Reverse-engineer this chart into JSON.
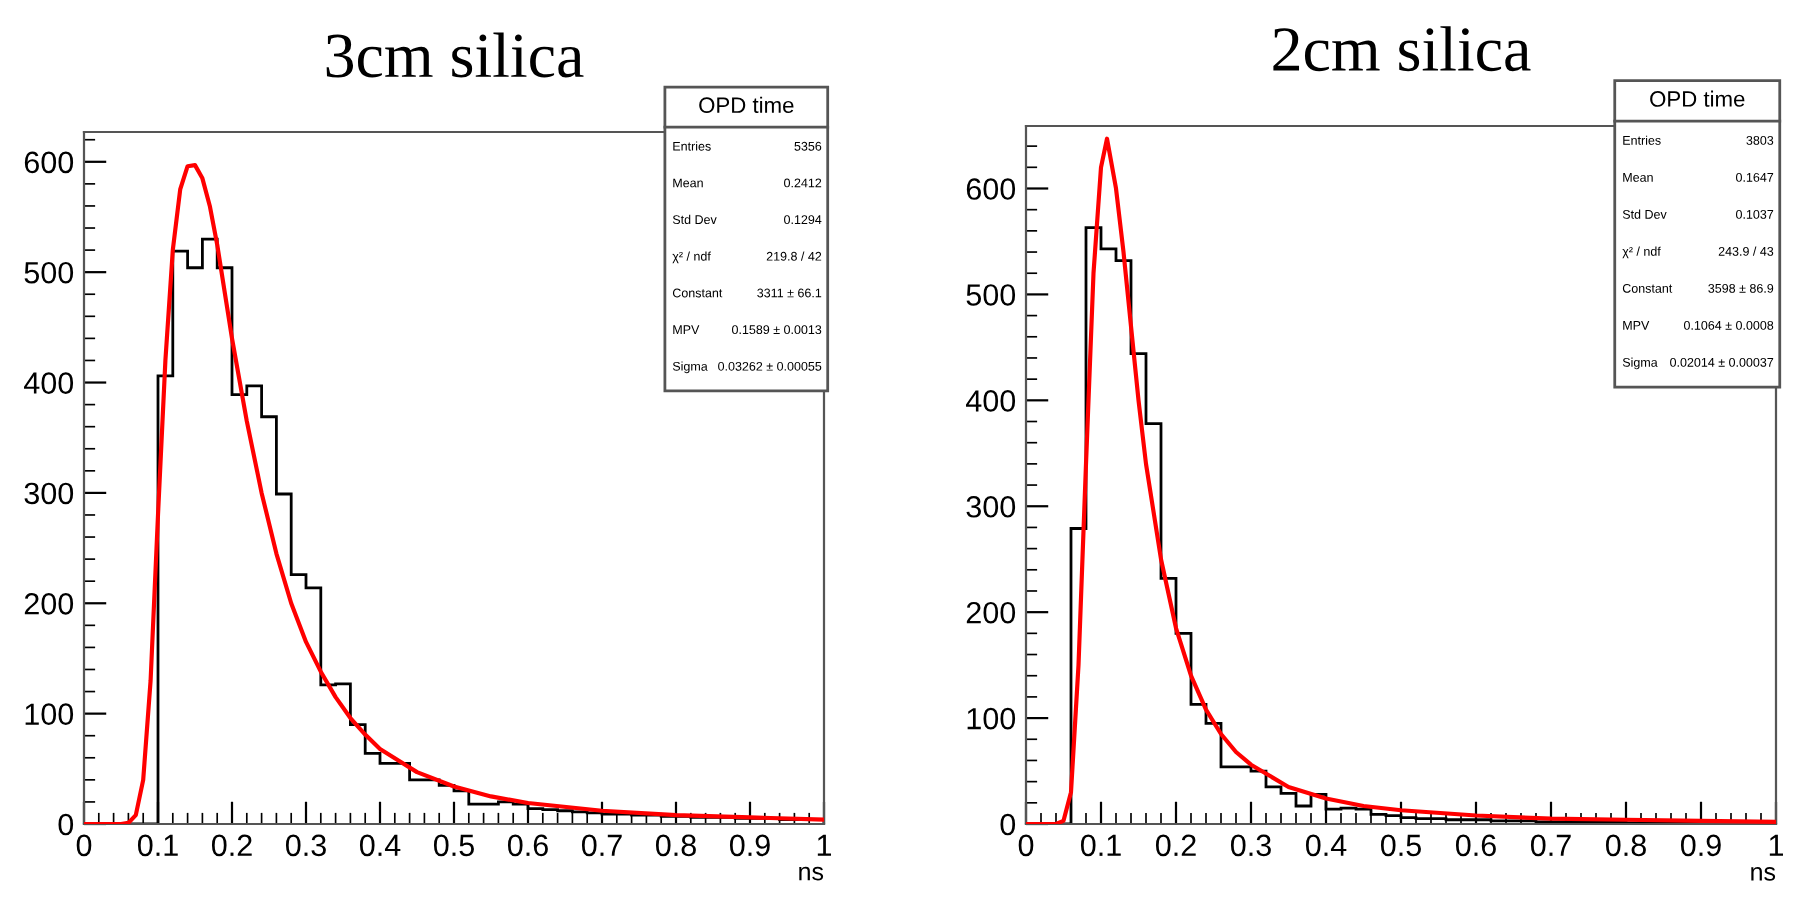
{
  "chart_data": [
    {
      "type": "histogram",
      "title": "3cm silica",
      "xlabel": "ns",
      "color": "#000000",
      "bins": [
        0,
        0.02,
        0.04,
        0.06,
        0.08,
        0.1,
        0.12,
        0.14,
        0.16,
        0.18,
        0.2,
        0.22,
        0.24,
        0.26,
        0.28,
        0.3,
        0.32,
        0.34,
        0.36,
        0.38,
        0.4,
        0.42,
        0.44,
        0.46,
        0.48,
        0.5,
        0.52,
        0.54,
        0.56,
        0.58,
        0.6,
        0.62,
        0.64,
        0.66,
        0.68,
        0.7,
        0.72,
        0.74,
        0.76,
        0.78,
        0.8,
        0.82,
        0.84,
        0.86,
        0.88,
        0.9,
        0.92,
        0.94,
        0.96,
        0.98,
        1
      ],
      "values": [
        0,
        0,
        0,
        0,
        0,
        406,
        519,
        504,
        530,
        504,
        389,
        397,
        369,
        299,
        226,
        214,
        126,
        127,
        90,
        64,
        55,
        55,
        40,
        40,
        35,
        30,
        18,
        18,
        20,
        18,
        14,
        13,
        12,
        11,
        10,
        9,
        9,
        8,
        8,
        7,
        7,
        6,
        6,
        6,
        5,
        5,
        5,
        4,
        4,
        4
      ],
      "series": [
        {
          "type": "line",
          "color": "#ff0000",
          "x": [
            0,
            0.05,
            0.06,
            0.07,
            0.08,
            0.09,
            0.1,
            0.11,
            0.12,
            0.13,
            0.14,
            0.15,
            0.16,
            0.17,
            0.18,
            0.2,
            0.22,
            0.24,
            0.26,
            0.28,
            0.3,
            0.32,
            0.34,
            0.36,
            0.38,
            0.4,
            0.45,
            0.5,
            0.55,
            0.6,
            0.7,
            0.8,
            0.9,
            1
          ],
          "values": [
            0,
            0,
            1,
            8,
            40,
            130,
            280,
            420,
            520,
            575,
            596,
            597,
            585,
            560,
            525,
            440,
            365,
            300,
            245,
            200,
            165,
            138,
            115,
            96,
            81,
            68,
            47,
            34,
            25,
            19,
            12,
            8,
            6,
            4
          ]
        }
      ],
      "xlim": [
        0,
        1
      ],
      "xticks": [
        0,
        0.1,
        0.2,
        0.3,
        0.4,
        0.5,
        0.6,
        0.7,
        0.8,
        0.9,
        1
      ],
      "ylim": [
        0,
        627
      ],
      "yticks": [
        0,
        100,
        200,
        300,
        400,
        500,
        600
      ],
      "grid": false,
      "annotations": [
        "OPD time",
        "Entries",
        "5356",
        "Mean",
        "0.2412",
        "Std Dev",
        "0.1294",
        "χ² / ndf",
        "219.8 / 42",
        "Constant",
        "3311 ± 66.1",
        "MPV",
        "0.1589 ± 0.0013",
        "Sigma",
        "0.03262 ± 0.00055"
      ]
    },
    {
      "type": "histogram",
      "title": "2cm silica",
      "xlabel": "ns",
      "color": "#000000",
      "bins": [
        0,
        0.02,
        0.04,
        0.06,
        0.08,
        0.1,
        0.12,
        0.14,
        0.16,
        0.18,
        0.2,
        0.22,
        0.24,
        0.26,
        0.28,
        0.3,
        0.32,
        0.34,
        0.36,
        0.38,
        0.4,
        0.42,
        0.44,
        0.46,
        0.48,
        0.5,
        0.52,
        0.54,
        0.56,
        0.58,
        0.6,
        0.62,
        0.64,
        0.66,
        0.68,
        0.7,
        0.72,
        0.74,
        0.76,
        0.78,
        0.8,
        0.82,
        0.84,
        0.86,
        0.88,
        0.9,
        0.92,
        0.94,
        0.96,
        0.98,
        1
      ],
      "values": [
        0,
        0,
        0,
        279,
        563,
        543,
        532,
        444,
        378,
        232,
        180,
        113,
        95,
        54,
        54,
        50,
        35,
        29,
        17,
        28,
        14,
        15,
        14,
        9,
        8,
        6,
        5,
        5,
        4,
        4,
        4,
        3,
        3,
        3,
        2,
        2,
        2,
        2,
        2,
        2,
        1,
        1,
        2,
        1,
        1,
        1,
        1,
        1,
        1,
        1
      ],
      "series": [
        {
          "type": "line",
          "color": "#ff0000",
          "x": [
            0,
            0.04,
            0.05,
            0.06,
            0.07,
            0.08,
            0.09,
            0.1,
            0.108,
            0.12,
            0.13,
            0.14,
            0.15,
            0.16,
            0.18,
            0.2,
            0.22,
            0.24,
            0.26,
            0.28,
            0.3,
            0.35,
            0.4,
            0.45,
            0.5,
            0.6,
            0.7,
            0.8,
            0.9,
            1
          ],
          "values": [
            0,
            0,
            3,
            30,
            150,
            340,
            520,
            620,
            647,
            600,
            540,
            470,
            400,
            340,
            250,
            185,
            140,
            108,
            85,
            68,
            56,
            35,
            24,
            17,
            13,
            8,
            5,
            4,
            3,
            2
          ]
        }
      ],
      "xlim": [
        0,
        1
      ],
      "xticks": [
        0,
        0.1,
        0.2,
        0.3,
        0.4,
        0.5,
        0.6,
        0.7,
        0.8,
        0.9,
        1
      ],
      "ylim": [
        0,
        659
      ],
      "yticks": [
        0,
        100,
        200,
        300,
        400,
        500,
        600
      ],
      "grid": false,
      "annotations": [
        "OPD time",
        "Entries",
        "3803",
        "Mean",
        "0.1647",
        "Std Dev",
        "0.1037",
        "χ² / ndf",
        "243.9 / 43",
        "Constant",
        "3598 ± 86.9",
        "MPV",
        "0.1064 ± 0.0008",
        "Sigma",
        "0.02014 ± 0.00037"
      ]
    }
  ]
}
